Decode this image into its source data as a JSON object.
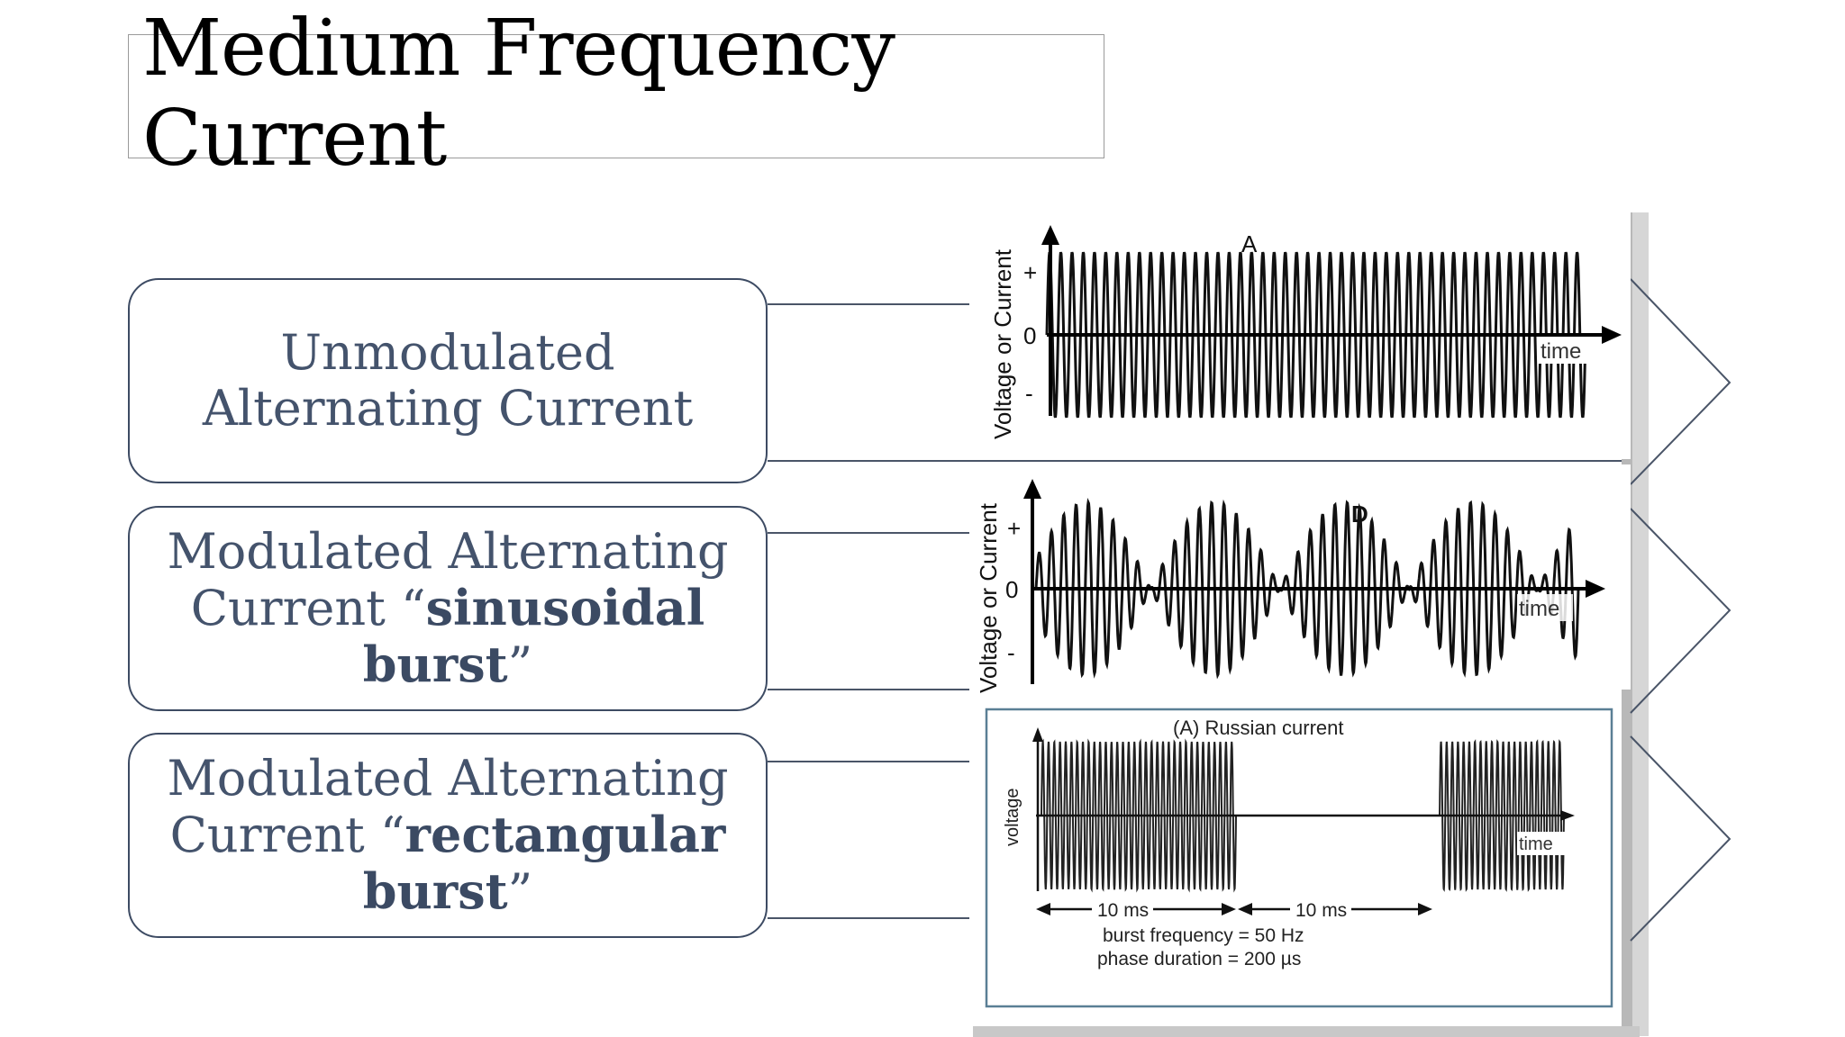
{
  "slide": {
    "title": "Medium Frequency\nCurrent"
  },
  "items": [
    {
      "text_plain": "Unmodulated Alternating Current",
      "text_bold": "",
      "text_tail": ""
    },
    {
      "text_plain": "Modulated Alternating Current “",
      "text_bold": "sinusoidal burst",
      "text_tail": "”"
    },
    {
      "text_plain": "Modulated Alternating Current “",
      "text_bold": "rectangular burst",
      "text_tail": "”"
    }
  ],
  "panels": {
    "a": {
      "letter": "A",
      "y_axis": "Voltage or Current",
      "plus": "+",
      "zero": "0",
      "minus": "-",
      "x_axis": "time"
    },
    "d": {
      "letter": "D",
      "y_axis": "Voltage or Current",
      "plus": "+",
      "zero": "0",
      "minus": "-",
      "x_axis": "time"
    },
    "russian": {
      "title": "(A) Russian current",
      "y_axis": "voltage",
      "x_axis": "time",
      "interval_1": "10 ms",
      "interval_2": "10 ms",
      "burst_frequency": "burst frequency = 50 Hz",
      "phase_duration": "phase duration = 200 µs"
    }
  },
  "colors": {
    "text": "#44536c",
    "border": "#3d4b63",
    "line": "#4a5568"
  }
}
